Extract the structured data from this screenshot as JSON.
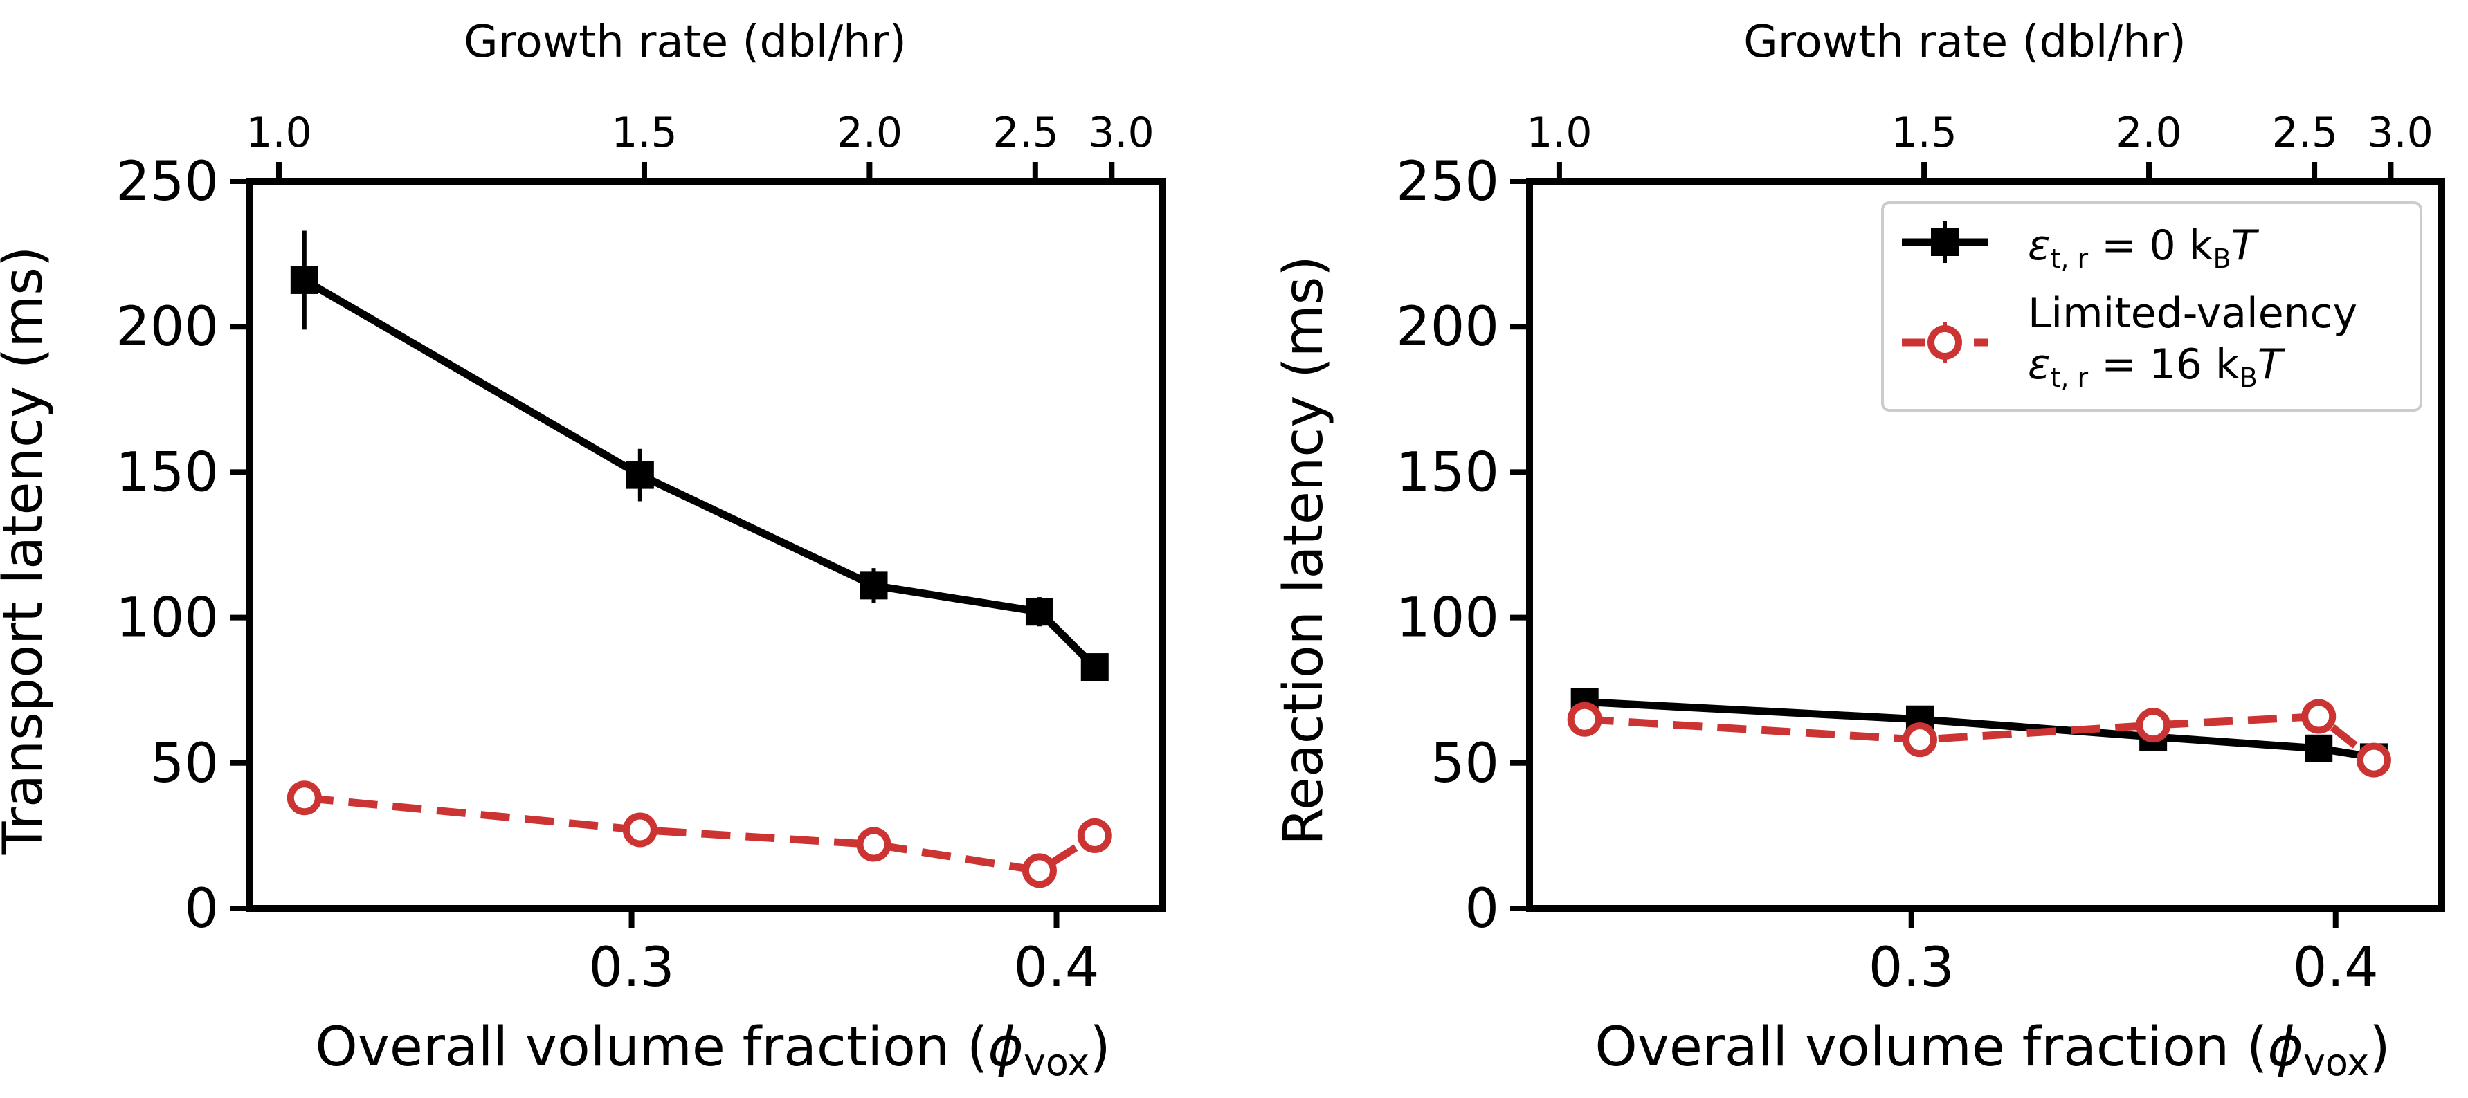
{
  "colors": {
    "series_0": "#000000",
    "series_1": "#cc3333",
    "axis": "#000000",
    "legend_border": "#cccccc"
  },
  "chart_data": [
    {
      "type": "line",
      "xlabel": "Overall volume fraction (",
      "xlabel_symbol": "ϕ",
      "xlabel_sub": "vox",
      "xlabel_close": ")",
      "ylabel": "Transport latency (ms)",
      "top_xlabel": "Growth rate (dbl/hr)",
      "xlim": [
        0.21,
        0.425
      ],
      "ylim": [
        0,
        250
      ],
      "xticks": [
        {
          "value": 0.3,
          "label": "0.3"
        },
        {
          "value": 0.4,
          "label": "0.4"
        }
      ],
      "yticks": [
        {
          "value": 0,
          "label": "0"
        },
        {
          "value": 50,
          "label": "50"
        },
        {
          "value": 100,
          "label": "100"
        },
        {
          "value": 150,
          "label": "150"
        },
        {
          "value": 200,
          "label": "200"
        },
        {
          "value": 250,
          "label": "250"
        }
      ],
      "top_xticks": [
        {
          "value": 0.217,
          "label": "1.0"
        },
        {
          "value": 0.303,
          "label": "1.5"
        },
        {
          "value": 0.356,
          "label": "2.0"
        },
        {
          "value": 0.395,
          "label": "2.5"
        },
        {
          "value": 0.413,
          "label": "3.0"
        }
      ],
      "grid": false,
      "series": [
        {
          "x": [
            0.223,
            0.302,
            0.357,
            0.396,
            0.409
          ],
          "y": [
            216,
            149,
            111,
            102,
            83
          ],
          "yerr": [
            17,
            9,
            6,
            5,
            3
          ],
          "style": "solid",
          "marker": "square"
        },
        {
          "x": [
            0.223,
            0.302,
            0.357,
            0.396,
            0.409
          ],
          "y": [
            38,
            27,
            22,
            13,
            25
          ],
          "yerr": [
            0,
            0,
            0,
            0,
            0
          ],
          "style": "dashed",
          "marker": "open-circle"
        }
      ]
    },
    {
      "type": "line",
      "xlabel": "Overall volume fraction (",
      "xlabel_symbol": "ϕ",
      "xlabel_sub": "vox",
      "xlabel_close": ")",
      "ylabel": "Reaction latency (ms)",
      "top_xlabel": "Growth rate (dbl/hr)",
      "xlim": [
        0.21,
        0.425
      ],
      "ylim": [
        0,
        250
      ],
      "xticks": [
        {
          "value": 0.3,
          "label": "0.3"
        },
        {
          "value": 0.4,
          "label": "0.4"
        }
      ],
      "yticks": [
        {
          "value": 0,
          "label": "0"
        },
        {
          "value": 50,
          "label": "50"
        },
        {
          "value": 100,
          "label": "100"
        },
        {
          "value": 150,
          "label": "150"
        },
        {
          "value": 200,
          "label": "200"
        },
        {
          "value": 250,
          "label": "250"
        }
      ],
      "top_xticks": [
        {
          "value": 0.217,
          "label": "1.0"
        },
        {
          "value": 0.303,
          "label": "1.5"
        },
        {
          "value": 0.356,
          "label": "2.0"
        },
        {
          "value": 0.395,
          "label": "2.5"
        },
        {
          "value": 0.413,
          "label": "3.0"
        }
      ],
      "grid": false,
      "legend": {
        "placement": "top-right",
        "entries": [
          {
            "series": 0,
            "lines": [
              {
                "text": "ε",
                "sub": "t, r",
                "rest": " = 0 k",
                "sub2": "B",
                "tail": "T"
              }
            ]
          },
          {
            "series": 1,
            "lines": [
              {
                "text": "Limited-valency"
              },
              {
                "text": "ε",
                "sub": "t, r",
                "rest": " = 16 k",
                "sub2": "B",
                "tail": "T"
              }
            ]
          }
        ]
      },
      "series": [
        {
          "x": [
            0.223,
            0.302,
            0.357,
            0.396,
            0.409
          ],
          "y": [
            71,
            65,
            59,
            55,
            52
          ],
          "yerr": [
            0,
            0,
            0,
            0,
            0
          ],
          "style": "solid",
          "marker": "square"
        },
        {
          "x": [
            0.223,
            0.302,
            0.357,
            0.396,
            0.409
          ],
          "y": [
            65,
            58,
            63,
            66,
            51
          ],
          "yerr": [
            0,
            0,
            0,
            0,
            0
          ],
          "style": "dashed",
          "marker": "open-circle"
        }
      ]
    }
  ]
}
